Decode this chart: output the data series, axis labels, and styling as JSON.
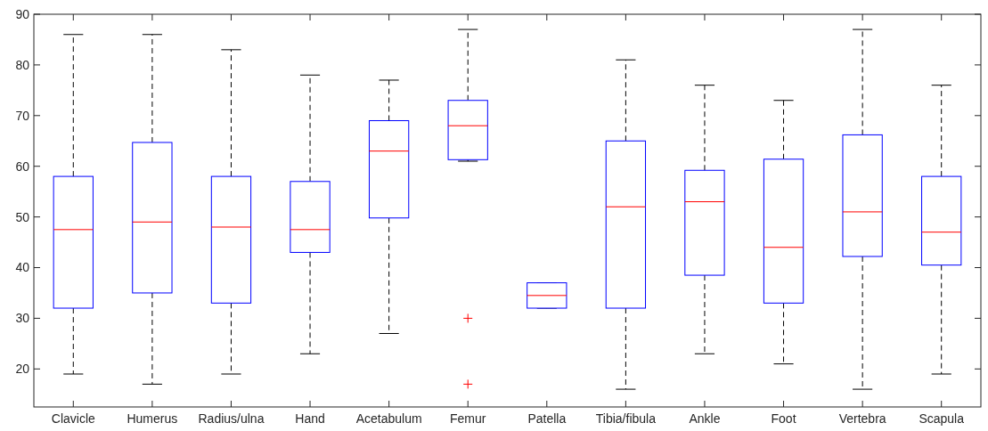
{
  "chart_data": {
    "type": "box",
    "categories": [
      "Clavicle",
      "Humerus",
      "Radius/ulna",
      "Hand",
      "Acetabulum",
      "Femur",
      "Patella",
      "Tibia/fibula",
      "Ankle",
      "Foot",
      "Vertebra",
      "Scapula"
    ],
    "ylim": [
      12.5,
      90
    ],
    "yticks": [
      20,
      30,
      40,
      50,
      60,
      70,
      80,
      90
    ],
    "grid": false,
    "series": [
      {
        "color": "#0000ff",
        "boxes": [
          {
            "low": 19,
            "q1": 32,
            "median": 47.5,
            "q3": 58,
            "high": 86
          },
          {
            "low": 17,
            "q1": 35,
            "median": 49,
            "q3": 64.7,
            "high": 86
          },
          {
            "low": 19,
            "q1": 33,
            "median": 48,
            "q3": 58,
            "high": 83
          },
          {
            "low": 23,
            "q1": 43,
            "median": 47.5,
            "q3": 57,
            "high": 78
          },
          {
            "low": 27,
            "q1": 49.8,
            "median": 63,
            "q3": 69,
            "high": 77
          },
          {
            "low": 61,
            "q1": 61.3,
            "median": 68,
            "q3": 73,
            "high": 87,
            "outliers": [
              30,
              17
            ]
          },
          {
            "low": 32,
            "q1": 32,
            "median": 34.5,
            "q3": 37,
            "high": 37
          },
          {
            "low": 16,
            "q1": 32,
            "median": 52,
            "q3": 65,
            "high": 81
          },
          {
            "low": 23,
            "q1": 38.5,
            "median": 53,
            "q3": 59.2,
            "high": 76
          },
          {
            "low": 21,
            "q1": 33,
            "median": 44,
            "q3": 61.4,
            "high": 73
          },
          {
            "low": 16,
            "q1": 42.2,
            "median": 51,
            "q3": 66.2,
            "high": 87
          },
          {
            "low": 19,
            "q1": 40.5,
            "median": 47,
            "q3": 58,
            "high": 76
          }
        ]
      }
    ]
  }
}
